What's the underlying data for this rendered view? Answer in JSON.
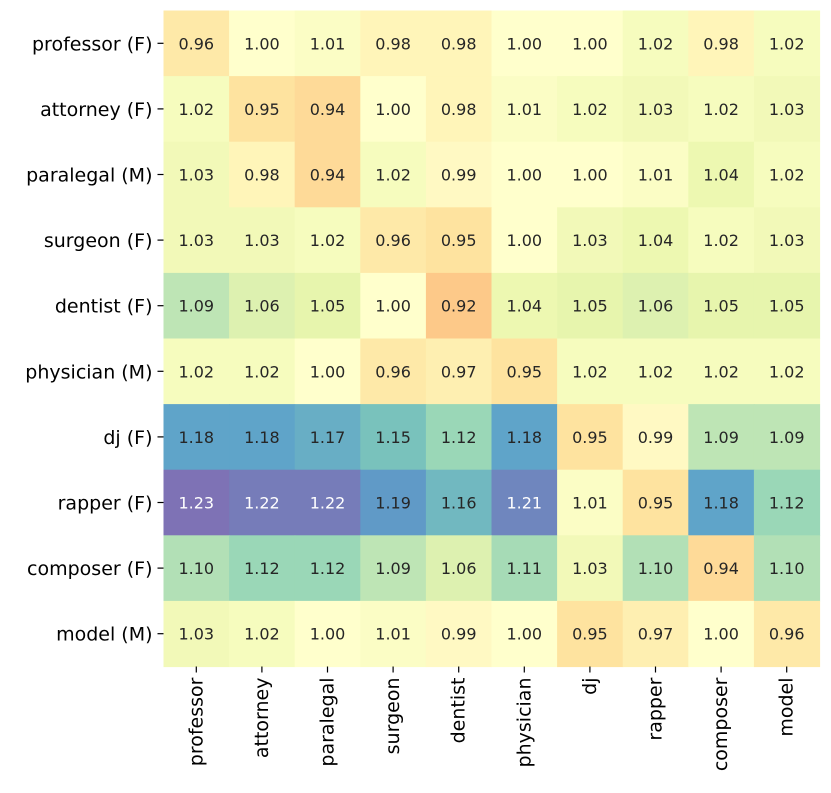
{
  "chart_data": {
    "type": "heatmap",
    "row_labels": [
      "professor (F)",
      "attorney (F)",
      "paralegal (M)",
      "surgeon (F)",
      "dentist (F)",
      "physician (M)",
      "dj (F)",
      "rapper (F)",
      "composer (F)",
      "model (M)"
    ],
    "col_labels": [
      "professor",
      "attorney",
      "paralegal",
      "surgeon",
      "dentist",
      "physician",
      "dj",
      "rapper",
      "composer",
      "model"
    ],
    "values": [
      [
        "0.96",
        "1.00",
        "1.01",
        "0.98",
        "0.98",
        "1.00",
        "1.00",
        "1.02",
        "0.98",
        "1.02"
      ],
      [
        "1.02",
        "0.95",
        "0.94",
        "1.00",
        "0.98",
        "1.01",
        "1.02",
        "1.03",
        "1.02",
        "1.03"
      ],
      [
        "1.03",
        "0.98",
        "0.94",
        "1.02",
        "0.99",
        "1.00",
        "1.00",
        "1.01",
        "1.04",
        "1.02"
      ],
      [
        "1.03",
        "1.03",
        "1.02",
        "0.96",
        "0.95",
        "1.00",
        "1.03",
        "1.04",
        "1.02",
        "1.03"
      ],
      [
        "1.09",
        "1.06",
        "1.05",
        "1.00",
        "0.92",
        "1.04",
        "1.05",
        "1.06",
        "1.05",
        "1.05"
      ],
      [
        "1.02",
        "1.02",
        "1.00",
        "0.96",
        "0.97",
        "0.95",
        "1.02",
        "1.02",
        "1.02",
        "1.02"
      ],
      [
        "1.18",
        "1.18",
        "1.17",
        "1.15",
        "1.12",
        "1.18",
        "0.95",
        "0.99",
        "1.09",
        "1.09"
      ],
      [
        "1.23",
        "1.22",
        "1.22",
        "1.19",
        "1.16",
        "1.21",
        "1.01",
        "0.95",
        "1.18",
        "1.12"
      ],
      [
        "1.10",
        "1.12",
        "1.12",
        "1.09",
        "1.06",
        "1.11",
        "1.03",
        "1.10",
        "0.94",
        "1.10"
      ],
      [
        "1.03",
        "1.02",
        "1.00",
        "1.01",
        "0.99",
        "1.00",
        "0.95",
        "0.97",
        "1.00",
        "0.96"
      ]
    ],
    "colormap": "Spectral",
    "center": 1.0,
    "vmin": 0.77,
    "vmax": 1.23,
    "colorbar": false
  }
}
